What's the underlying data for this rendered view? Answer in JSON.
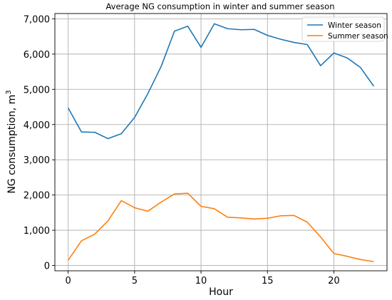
{
  "chart_data": {
    "type": "line",
    "title": "Average NG consumption in winter and summer season",
    "xlabel": "Hour",
    "ylabel": "NG consumption, m",
    "ylabel_superscript": "3",
    "xlim": [
      -1.0,
      24.0
    ],
    "ylim": [
      -150,
      7150
    ],
    "xticks": [
      0,
      5,
      10,
      15,
      20
    ],
    "yticks": [
      0,
      1000,
      2000,
      3000,
      4000,
      5000,
      6000,
      7000
    ],
    "ytick_labels": [
      "0",
      "1,000",
      "2,000",
      "3,000",
      "4,000",
      "5,000",
      "6,000",
      "7,000"
    ],
    "grid": true,
    "legend_position": "top-right",
    "x": [
      0,
      1,
      2,
      3,
      4,
      5,
      6,
      7,
      8,
      9,
      10,
      11,
      12,
      13,
      14,
      15,
      16,
      17,
      18,
      19,
      20,
      21,
      22,
      23
    ],
    "series": [
      {
        "name": "Winter season",
        "color": "#1f77b4",
        "values": [
          4470,
          3790,
          3780,
          3600,
          3740,
          4200,
          4880,
          5650,
          6650,
          6790,
          6190,
          6860,
          6720,
          6690,
          6700,
          6530,
          6420,
          6330,
          6270,
          5670,
          6030,
          5890,
          5620,
          5090
        ]
      },
      {
        "name": "Summer season",
        "color": "#ff7f0e",
        "values": [
          150,
          700,
          890,
          1270,
          1840,
          1640,
          1540,
          1800,
          2030,
          2050,
          1680,
          1610,
          1370,
          1350,
          1320,
          1340,
          1410,
          1420,
          1230,
          810,
          340,
          260,
          170,
          110
        ]
      }
    ]
  }
}
